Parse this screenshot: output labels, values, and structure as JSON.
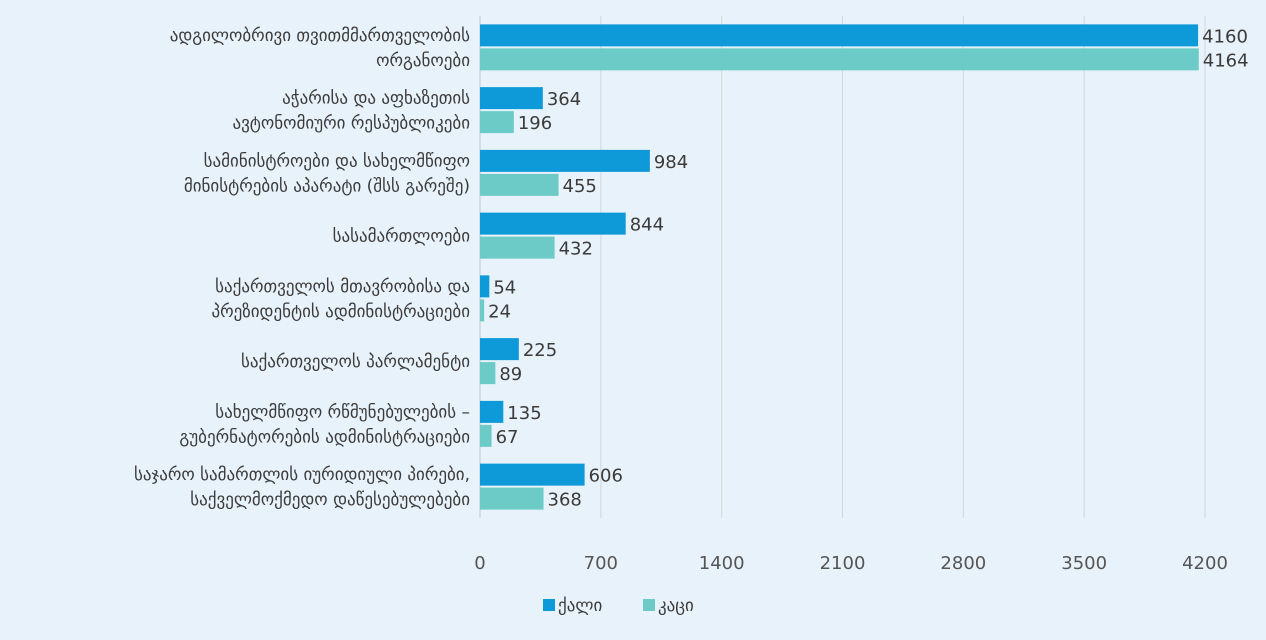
{
  "chart_data": {
    "type": "bar",
    "orientation": "horizontal",
    "categories": [
      [
        "ადგილობრივი თვითმმართველობის",
        "ორგანოები"
      ],
      [
        "აჭარისა და  აფხაზეთის",
        "ავტონომიური რესპუბლიკები"
      ],
      [
        "სამინისტროები და სახელმწიფო",
        "მინისტრების აპარატი (შსს გარეშე)"
      ],
      [
        "სასამართლოები"
      ],
      [
        "საქართველოს მთავრობისა და",
        "პრეზიდენტის ადმინისტრაციები"
      ],
      [
        "საქართველოს პარლამენტი"
      ],
      [
        "სახელმწიფო რწმუნებულების –",
        "გუბერნატორების ადმინისტრაციები"
      ],
      [
        "საჯარო სამართლის იურიდიული პირები,",
        "საქველმოქმედო დაწესებულებები"
      ]
    ],
    "series": [
      {
        "name": "ქალი",
        "color": "#0e9ad8",
        "values": [
          4160,
          364,
          984,
          844,
          54,
          225,
          135,
          606
        ]
      },
      {
        "name": "კაცი",
        "color": "#6ccbc6",
        "values": [
          4164,
          196,
          455,
          432,
          24,
          89,
          67,
          368
        ]
      }
    ],
    "x_ticks": [
      0,
      700,
      1400,
      2100,
      2800,
      3500,
      4200
    ],
    "xlim": [
      0,
      4200
    ],
    "grid": true,
    "legend_position": "bottom-left"
  }
}
